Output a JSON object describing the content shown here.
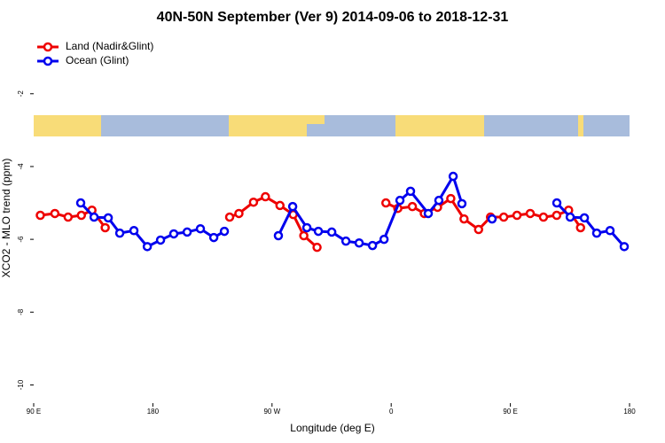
{
  "chart_data": {
    "type": "line",
    "title": "40N-50N September (Ver 9)   2014-09-06 to 2018-12-31",
    "x_label": "Longitude (deg E)",
    "y_label": "XCO2 - MLO trend (ppm)",
    "xlim": [
      90,
      540
    ],
    "xticks": [
      {
        "value": 90,
        "label": "90 E"
      },
      {
        "value": 180,
        "label": "180"
      },
      {
        "value": 270,
        "label": "90 W"
      },
      {
        "value": 360,
        "label": "0"
      },
      {
        "value": 450,
        "label": "90 E"
      },
      {
        "value": 540,
        "label": "180"
      }
    ],
    "ylim": [
      -10.5,
      -0.35
    ],
    "yticks": [
      -2,
      -4,
      -6,
      -8,
      -10
    ],
    "legend": "top-left",
    "series": [
      {
        "name": "Land (Nadir&Glint)",
        "color": "#ee0000",
        "x": [
          95,
          106,
          116,
          126,
          134,
          144,
          null,
          238,
          245,
          256,
          265,
          276,
          286,
          294,
          304,
          null,
          356,
          365,
          376,
          385,
          395,
          405,
          415,
          426,
          435,
          445,
          455,
          465,
          475,
          485,
          494,
          503
        ],
        "values": [
          -5.34,
          -5.29,
          -5.39,
          -5.34,
          -5.2,
          -5.68,
          null,
          -5.39,
          -5.29,
          -4.98,
          -4.83,
          -5.07,
          -5.32,
          -5.9,
          -6.22,
          null,
          -5.0,
          -5.15,
          -5.1,
          -5.29,
          -5.12,
          -4.88,
          -5.44,
          -5.73,
          -5.39,
          -5.39,
          -5.34,
          -5.29,
          -5.39,
          -5.34,
          -5.2,
          -5.68
        ]
      },
      {
        "name": "Ocean (Glint)",
        "color": "#0000ee",
        "x": [
          125.5,
          135.6,
          146.3,
          155,
          165.7,
          175.8,
          185.8,
          195.8,
          205.9,
          215.9,
          226,
          234,
          null,
          274.8,
          285.6,
          296.3,
          305,
          315.1,
          325.8,
          335.8,
          345.9,
          354.6,
          366.6,
          374.6,
          388,
          396,
          406.8,
          413.4,
          null,
          436.2,
          null,
          485.1,
          495.2,
          505.9,
          515.2,
          525.3,
          536
        ],
        "values": [
          -5.0,
          -5.39,
          -5.41,
          -5.83,
          -5.76,
          -6.2,
          -6.02,
          -5.85,
          -5.8,
          -5.71,
          -5.95,
          -5.78,
          null,
          -5.9,
          -5.1,
          -5.68,
          -5.78,
          -5.8,
          -6.05,
          -6.1,
          -6.17,
          -6.0,
          -4.93,
          -4.68,
          -5.29,
          -4.93,
          -4.27,
          -5.02,
          null,
          -5.44,
          null,
          -5.0,
          -5.39,
          -5.41,
          -5.83,
          -5.76,
          -6.2
        ]
      }
    ]
  }
}
